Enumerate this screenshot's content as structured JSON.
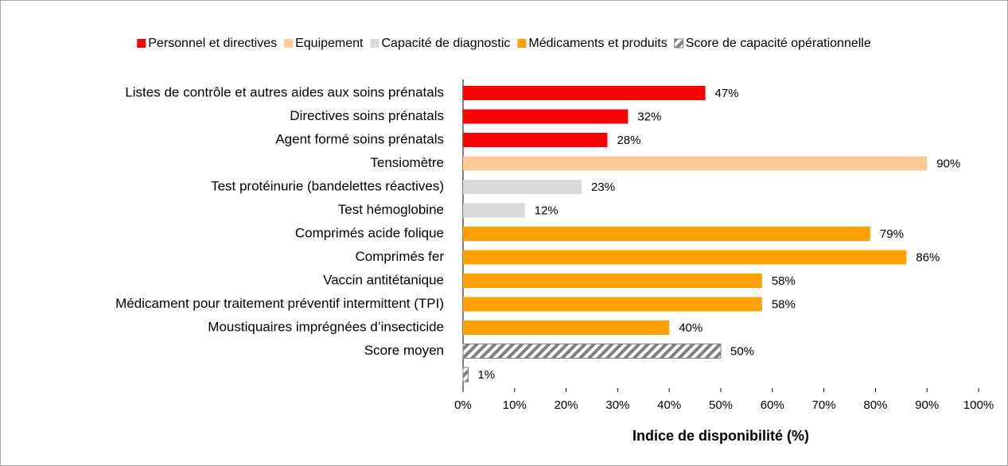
{
  "chart_data": {
    "type": "barh",
    "xlabel": "Indice de disponibilité (%)",
    "categories": [
      "Listes de contrôle et autres aides aux soins prénatals",
      "Directives soins prénatals",
      "Agent formé soins prénatals",
      "Tensiomètre",
      "Test protéinurie (bandelettes réactives)",
      "Test hémoglobine",
      "Comprimés acide folique",
      "Comprimés fer",
      "Vaccin antitétanique",
      "Médicament pour traitement préventif intermittent (TPI)",
      "Moustiquaires imprégnées d’insecticide",
      "Score moyen",
      null
    ],
    "series": [
      {
        "name": "Personnel et directives",
        "color": "#ff0000",
        "values": [
          47,
          32,
          28,
          null,
          null,
          null,
          null,
          null,
          null,
          null,
          null,
          null,
          null
        ],
        "value_labels": [
          "47%",
          "32%",
          "28%",
          null,
          null,
          null,
          null,
          null,
          null,
          null,
          null,
          null,
          null
        ]
      },
      {
        "name": "Equipement",
        "color": "#fccb97",
        "values": [
          null,
          null,
          null,
          90,
          null,
          null,
          null,
          null,
          null,
          null,
          null,
          null,
          null
        ],
        "value_labels": [
          null,
          null,
          null,
          "90%",
          null,
          null,
          null,
          null,
          null,
          null,
          null,
          null,
          null
        ]
      },
      {
        "name": "Capacité de diagnostic",
        "color": "#d9d9d9",
        "values": [
          null,
          null,
          null,
          null,
          23,
          12,
          null,
          null,
          null,
          null,
          null,
          null,
          null
        ],
        "value_labels": [
          null,
          null,
          null,
          null,
          "23%",
          "12%",
          null,
          null,
          null,
          null,
          null,
          null,
          null
        ]
      },
      {
        "name": "Médicaments et produits",
        "color": "#ff9f00",
        "values": [
          null,
          null,
          null,
          null,
          null,
          null,
          79,
          86,
          58,
          58,
          40,
          null,
          null
        ],
        "value_labels": [
          null,
          null,
          null,
          null,
          null,
          null,
          "79%",
          "86%",
          "58%",
          "58%",
          "40%",
          null,
          null
        ]
      },
      {
        "name": "Score de capacité opérationnelle",
        "color": "#7f7f7f",
        "pattern": "hatch",
        "values": [
          null,
          null,
          null,
          null,
          null,
          null,
          null,
          null,
          null,
          null,
          null,
          50,
          1
        ],
        "value_labels": [
          null,
          null,
          null,
          null,
          null,
          null,
          null,
          null,
          null,
          null,
          null,
          "50%",
          "1%"
        ]
      }
    ],
    "xlim": [
      0,
      100
    ],
    "xticks": [
      {
        "value": 0,
        "label": "0%"
      },
      {
        "value": 10,
        "label": "10%"
      },
      {
        "value": 20,
        "label": "20%"
      },
      {
        "value": 30,
        "label": "30%"
      },
      {
        "value": 40,
        "label": "40%"
      },
      {
        "value": 50,
        "label": "50%"
      },
      {
        "value": 60,
        "label": "60%"
      },
      {
        "value": 70,
        "label": "70%"
      },
      {
        "value": 80,
        "label": "80%"
      },
      {
        "value": 90,
        "label": "90%"
      },
      {
        "value": 100,
        "label": "100%"
      }
    ],
    "legend": "top"
  }
}
